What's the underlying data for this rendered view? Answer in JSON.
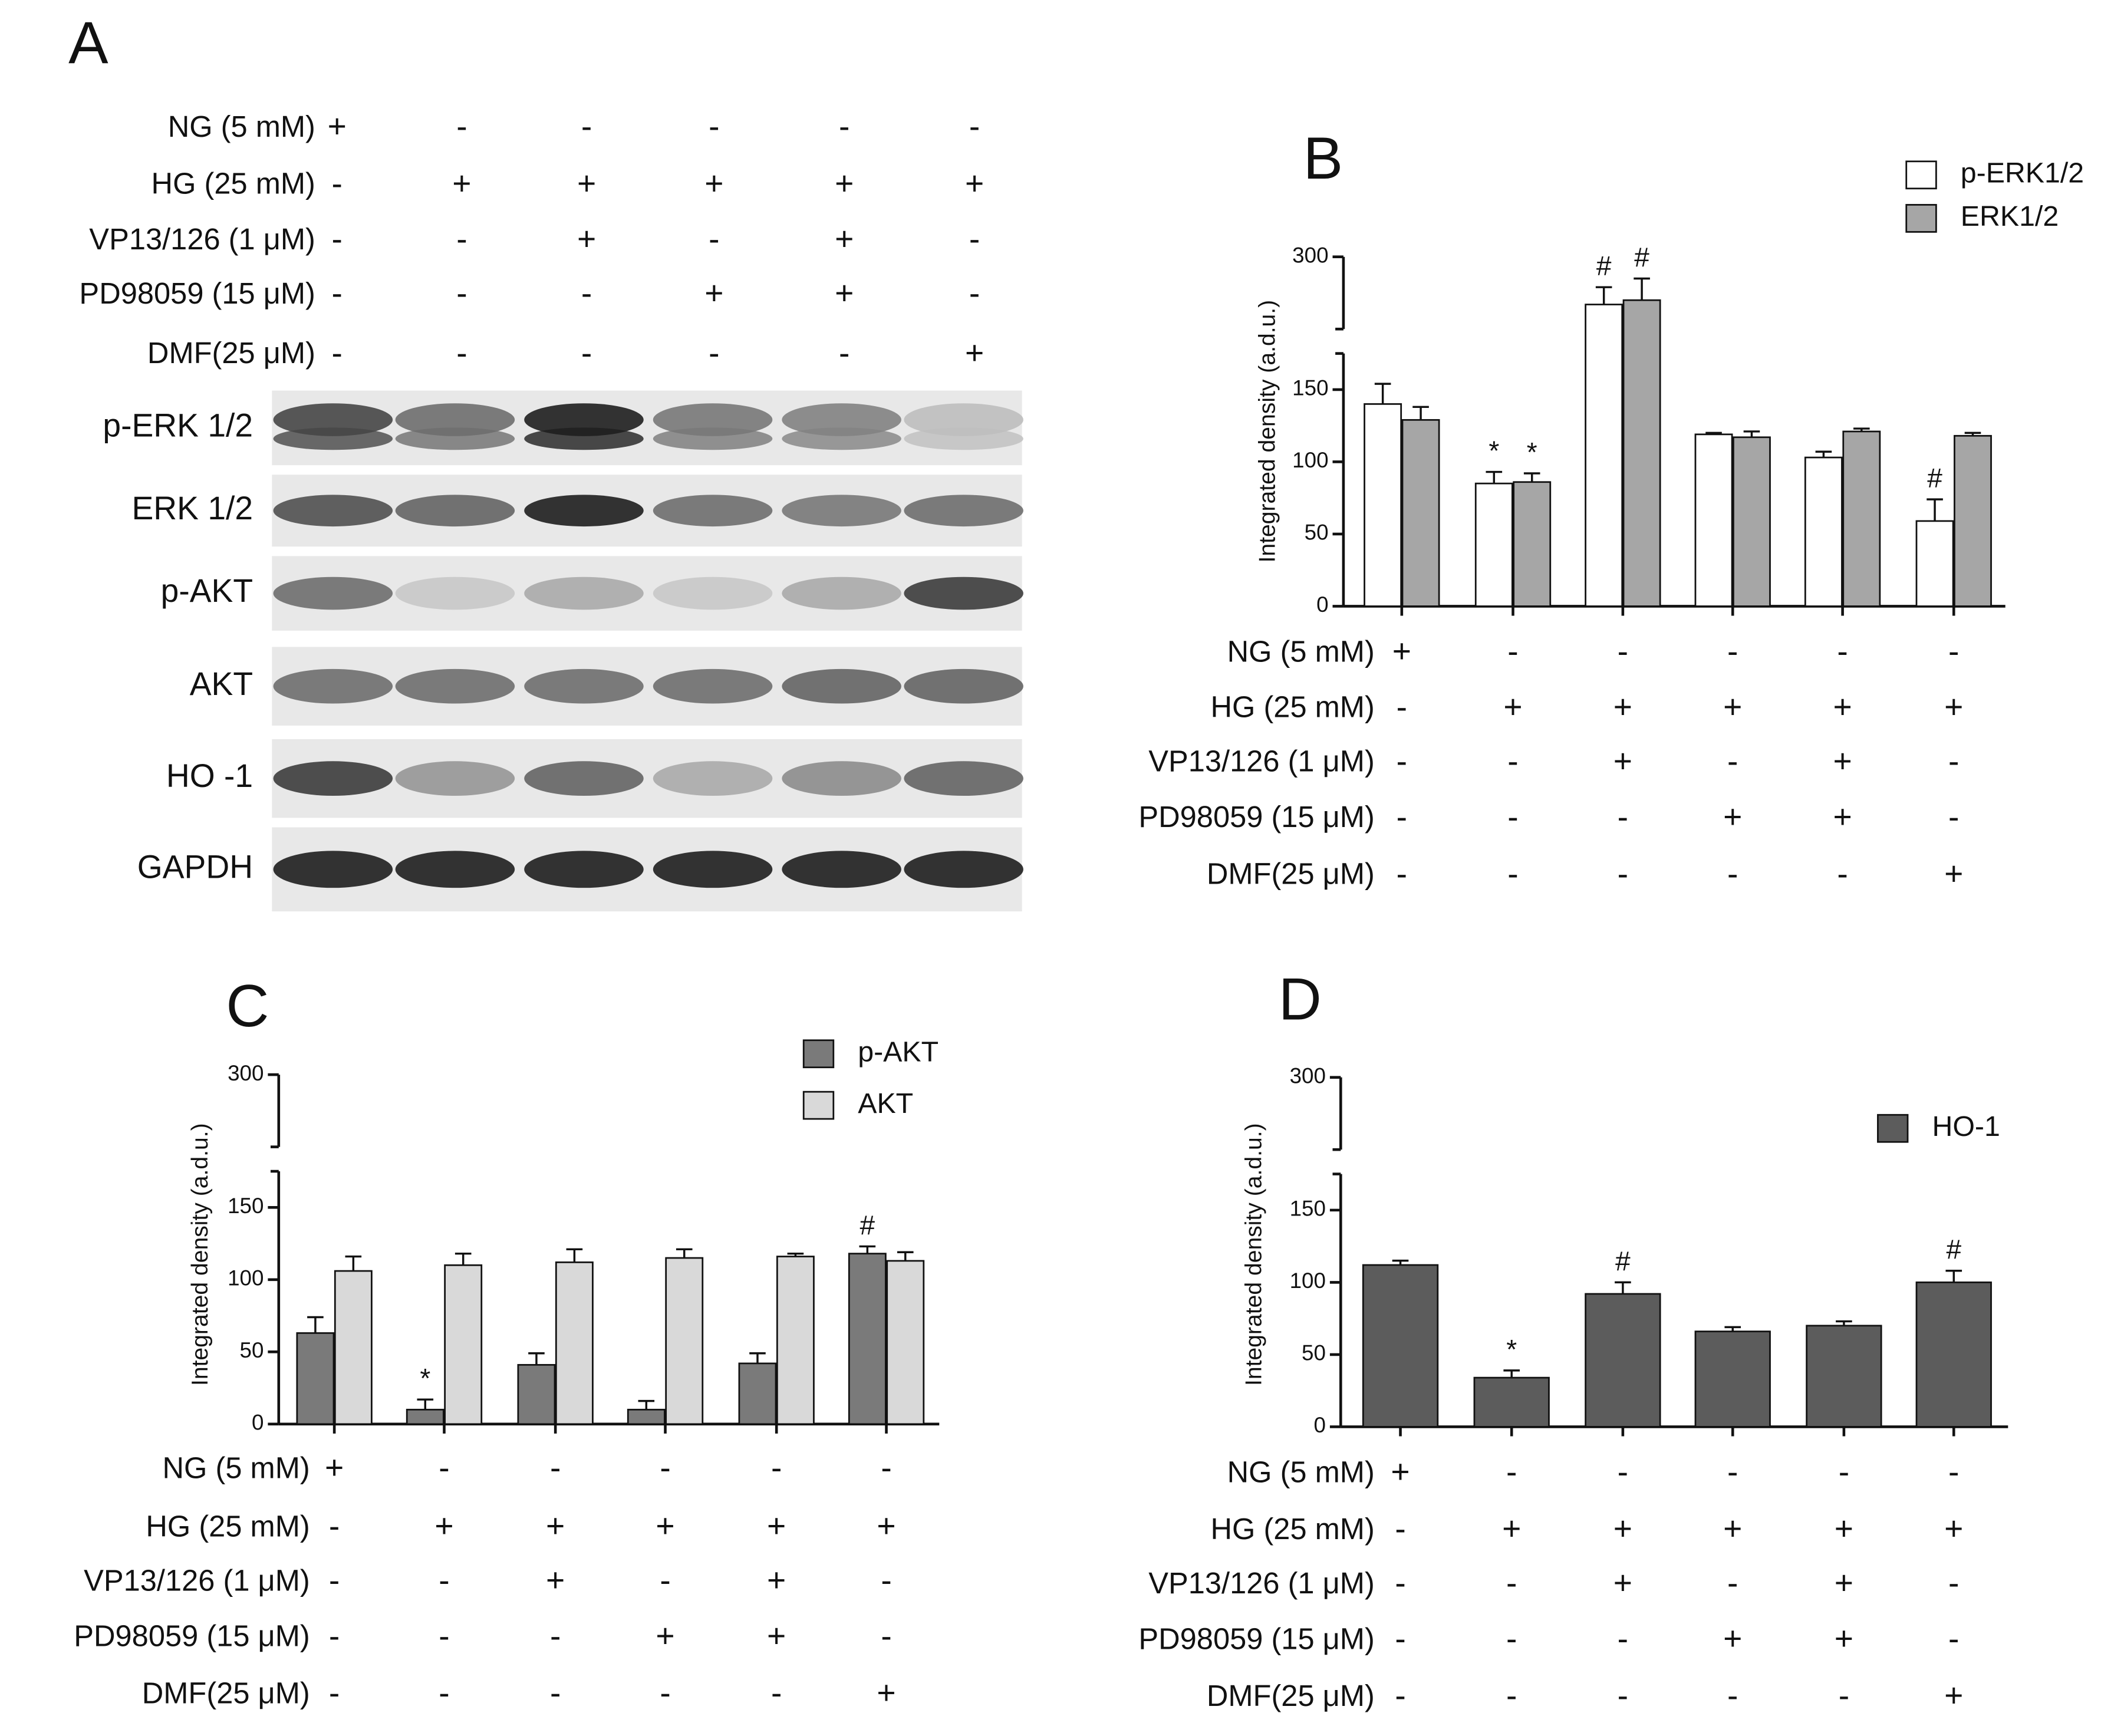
{
  "panel_a": {
    "letter": "A",
    "conditions": [
      {
        "label": "NG (5 mM)",
        "signs": [
          "+",
          "-",
          "-",
          "-",
          "-",
          "-"
        ]
      },
      {
        "label": "HG (25 mM)",
        "signs": [
          "-",
          "+",
          "+",
          "+",
          "+",
          "+"
        ]
      },
      {
        "label": "VP13/126 (1 μM)",
        "signs": [
          "-",
          "-",
          "+",
          "-",
          "+",
          "-"
        ]
      },
      {
        "label": "PD98059 (15 μM)",
        "signs": [
          "-",
          "-",
          "-",
          "+",
          "+",
          "-"
        ]
      },
      {
        "label": "DMF(25 μM)",
        "signs": [
          "-",
          "-",
          "-",
          "-",
          "-",
          "+"
        ]
      }
    ],
    "blots": [
      "p-ERK 1/2",
      "ERK 1/2",
      "p-AKT",
      "AKT",
      "HO -1",
      "GAPDH"
    ]
  },
  "chart_data": [
    {
      "type": "bar",
      "title": "B",
      "y_label": "Integrated density (a.d.u.)",
      "ylim": [
        0,
        300
      ],
      "yticks": [
        0,
        50,
        100,
        150,
        300
      ],
      "axis_break": [
        175,
        250
      ],
      "legend": "upper right",
      "series": [
        {
          "name": "p-ERK1/2",
          "color": "#ffffff",
          "values": [
            140,
            85,
            267,
            119,
            103,
            59
          ],
          "errors": [
            14,
            8,
            12,
            1,
            4,
            15
          ],
          "annotations": [
            null,
            "*",
            "#",
            null,
            null,
            "#"
          ]
        },
        {
          "name": "ERK1/2",
          "color": "#a6a6a6",
          "values": [
            129,
            86,
            270,
            117,
            121,
            118
          ],
          "errors": [
            9,
            6,
            15,
            4,
            2,
            2
          ],
          "annotations": [
            null,
            "*",
            "#",
            null,
            null,
            null
          ]
        }
      ],
      "conditions": [
        {
          "label": "NG (5 mM)",
          "signs": [
            "+",
            "-",
            "-",
            "-",
            "-",
            "-"
          ]
        },
        {
          "label": "HG (25 mM)",
          "signs": [
            "-",
            "+",
            "+",
            "+",
            "+",
            "+"
          ]
        },
        {
          "label": "VP13/126 (1 μM)",
          "signs": [
            "-",
            "-",
            "+",
            "-",
            "+",
            "-"
          ]
        },
        {
          "label": "PD98059 (15 μM)",
          "signs": [
            "-",
            "-",
            "-",
            "+",
            "+",
            "-"
          ]
        },
        {
          "label": "DMF(25 μM)",
          "signs": [
            "-",
            "-",
            "-",
            "-",
            "-",
            "+"
          ]
        }
      ]
    },
    {
      "type": "bar",
      "title": "C",
      "y_label": "Integrated density (a.d.u.)",
      "ylim": [
        0,
        300
      ],
      "yticks": [
        0,
        50,
        100,
        150,
        300
      ],
      "axis_break": [
        175,
        250
      ],
      "legend": "upper right",
      "series": [
        {
          "name": "p-AKT",
          "color": "#7a7a7a",
          "values": [
            63,
            10,
            41,
            10,
            42,
            118
          ],
          "errors": [
            11,
            7,
            8,
            6,
            7,
            5
          ],
          "annotations": [
            null,
            "*",
            null,
            null,
            null,
            "#"
          ]
        },
        {
          "name": "AKT",
          "color": "#d9d9d9",
          "values": [
            106,
            110,
            112,
            115,
            116,
            113
          ],
          "errors": [
            10,
            8,
            9,
            6,
            2,
            6
          ],
          "annotations": [
            null,
            null,
            null,
            null,
            null,
            null
          ]
        }
      ],
      "conditions": [
        {
          "label": "NG (5 mM)",
          "signs": [
            "+",
            "-",
            "-",
            "-",
            "-",
            "-"
          ]
        },
        {
          "label": "HG (25 mM)",
          "signs": [
            "-",
            "+",
            "+",
            "+",
            "+",
            "+"
          ]
        },
        {
          "label": "VP13/126 (1 μM)",
          "signs": [
            "-",
            "-",
            "+",
            "-",
            "+",
            "-"
          ]
        },
        {
          "label": "PD98059 (15 μM)",
          "signs": [
            "-",
            "-",
            "-",
            "+",
            "+",
            "-"
          ]
        },
        {
          "label": "DMF(25 μM)",
          "signs": [
            "-",
            "-",
            "-",
            "-",
            "-",
            "+"
          ]
        }
      ]
    },
    {
      "type": "bar",
      "title": "D",
      "y_label": "Integrated density (a.d.u.)",
      "ylim": [
        0,
        300
      ],
      "yticks": [
        0,
        50,
        100,
        150,
        300
      ],
      "axis_break": [
        175,
        250
      ],
      "legend": "upper right",
      "series": [
        {
          "name": "HO-1",
          "color": "#5c5c5c",
          "values": [
            112,
            34,
            92,
            66,
            70,
            100
          ],
          "errors": [
            3,
            5,
            8,
            3,
            3,
            8
          ],
          "annotations": [
            null,
            "*",
            "#",
            null,
            null,
            "#"
          ]
        }
      ],
      "conditions": [
        {
          "label": "NG (5 mM)",
          "signs": [
            "+",
            "-",
            "-",
            "-",
            "-",
            "-"
          ]
        },
        {
          "label": "HG (25 mM)",
          "signs": [
            "-",
            "+",
            "+",
            "+",
            "+",
            "+"
          ]
        },
        {
          "label": "VP13/126 (1 μM)",
          "signs": [
            "-",
            "-",
            "+",
            "-",
            "+",
            "-"
          ]
        },
        {
          "label": "PD98059 (15 μM)",
          "signs": [
            "-",
            "-",
            "-",
            "+",
            "+",
            "-"
          ]
        },
        {
          "label": "DMF(25 μM)",
          "signs": [
            "-",
            "-",
            "-",
            "-",
            "-",
            "+"
          ]
        }
      ]
    }
  ]
}
